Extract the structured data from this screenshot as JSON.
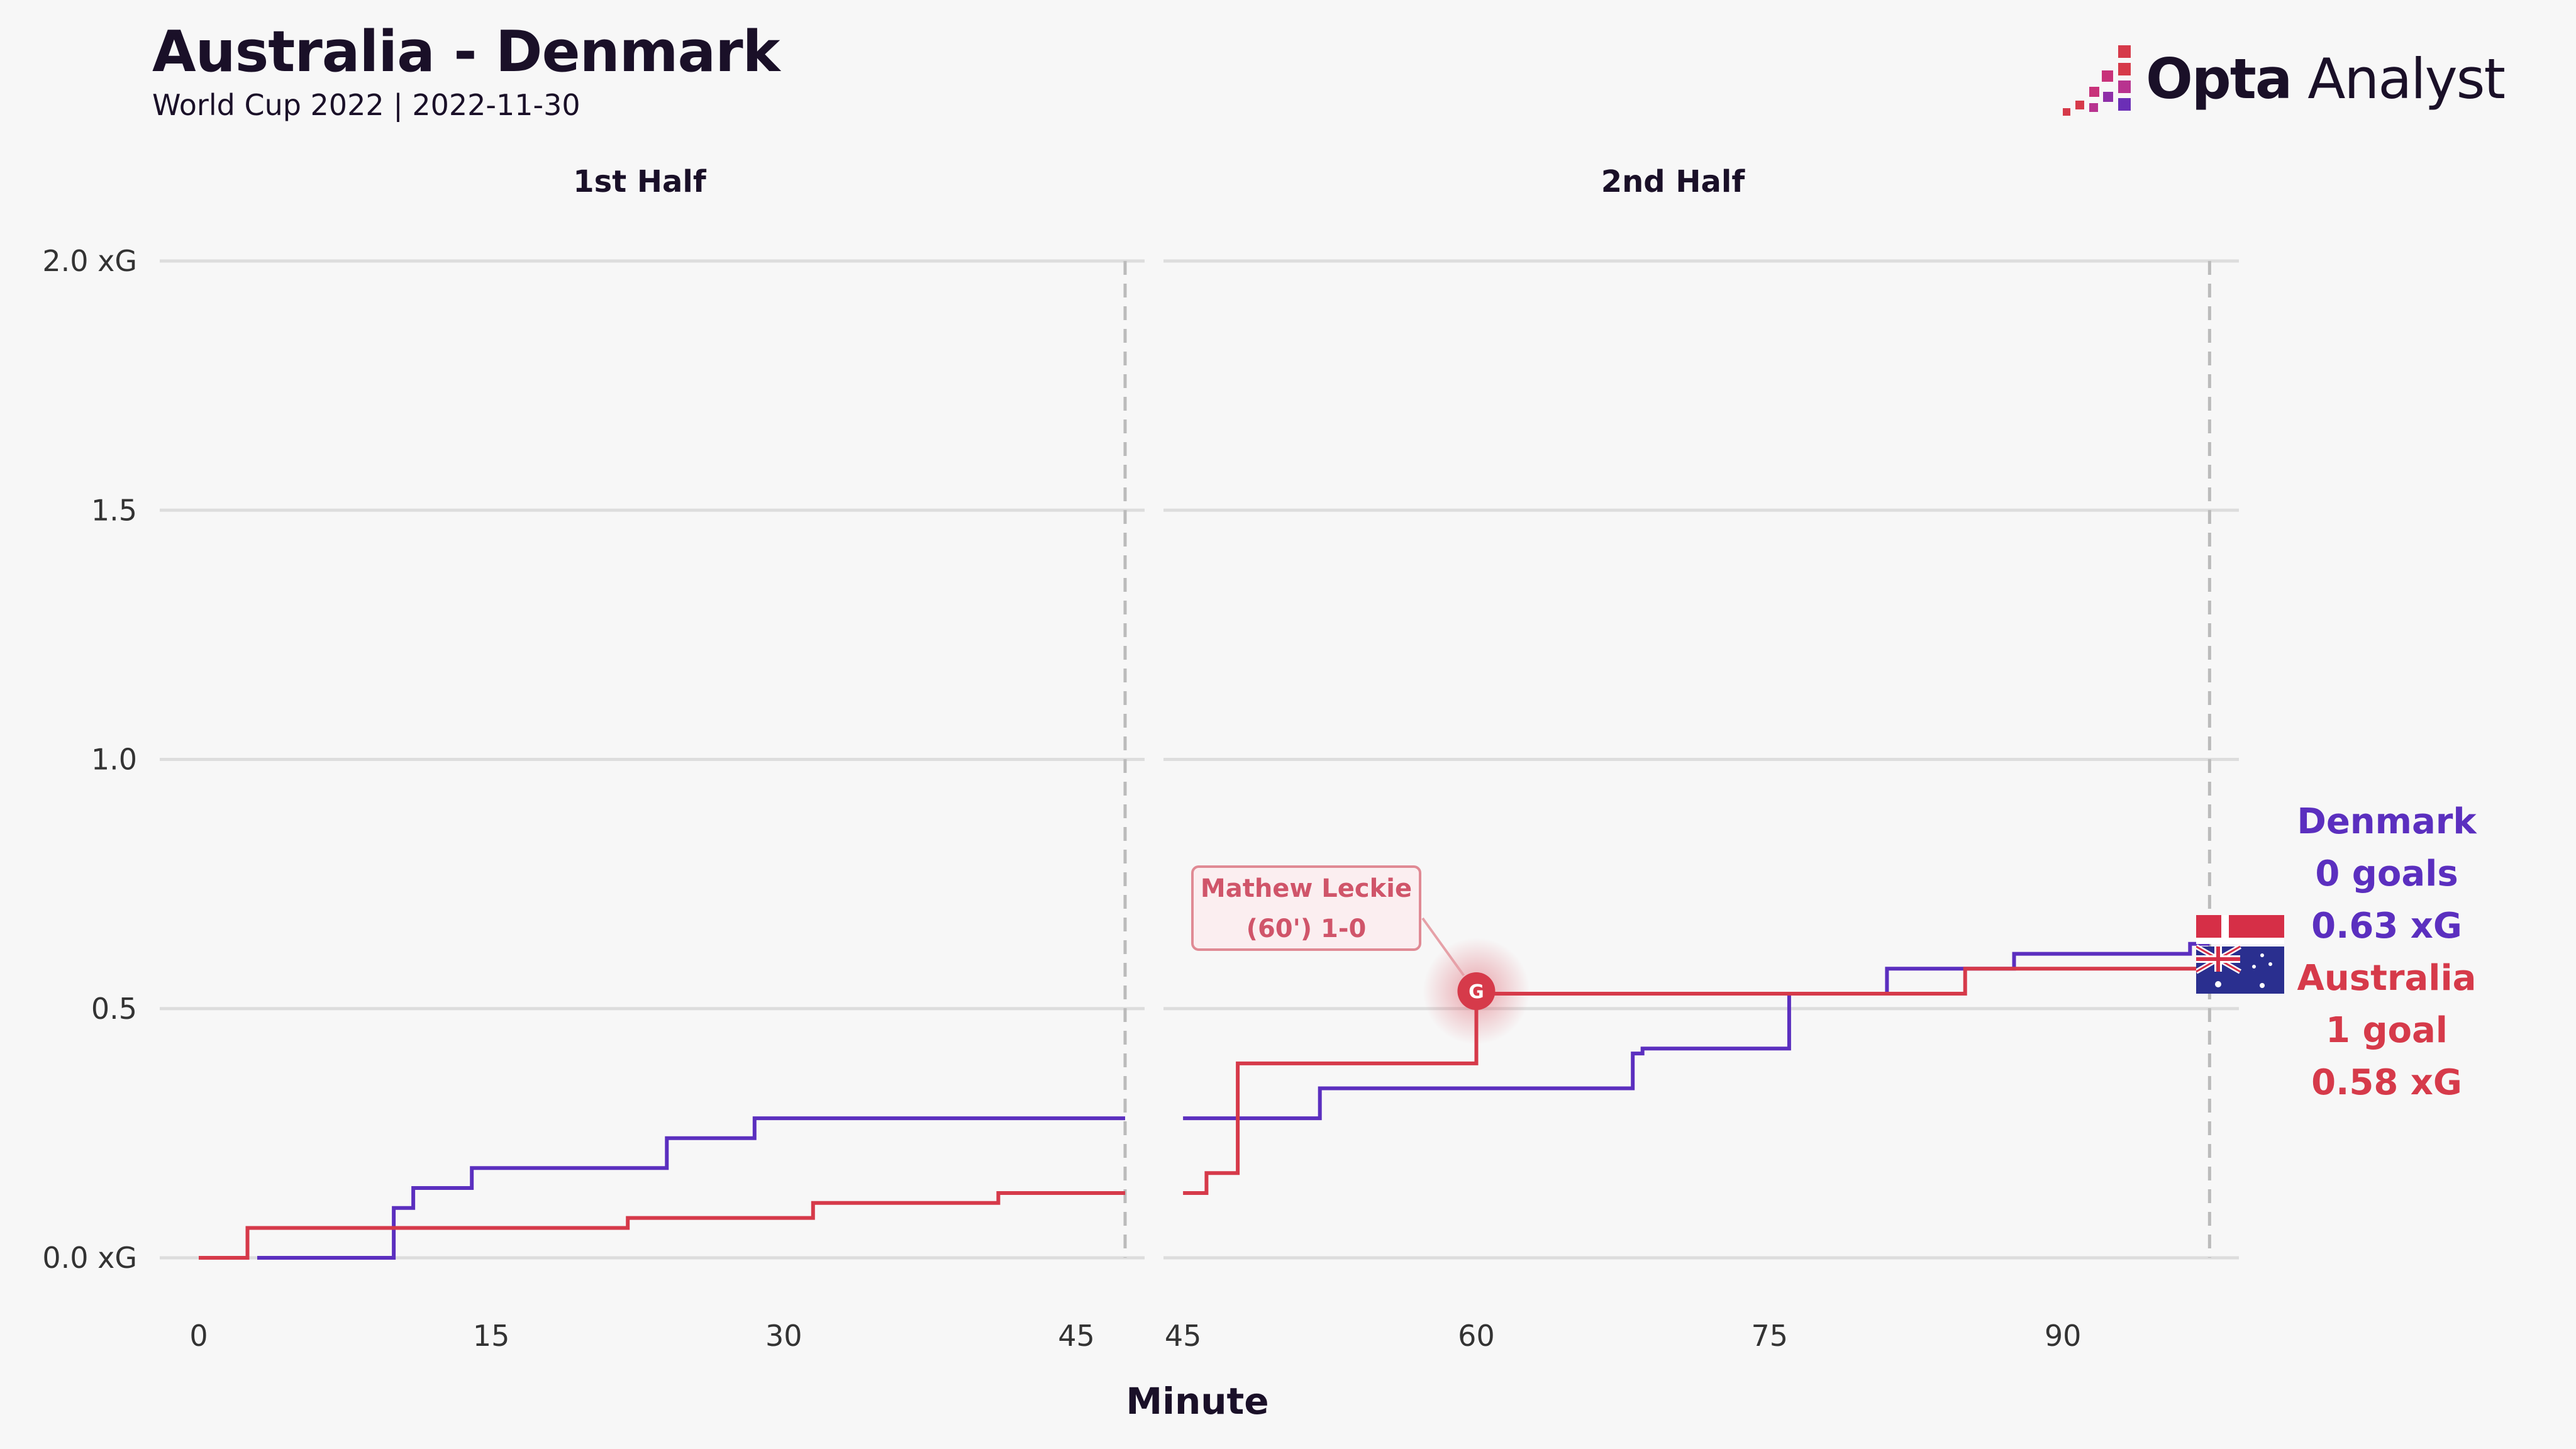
{
  "header": {
    "title": "Australia - Denmark",
    "subtitle": "World Cup 2022 | 2022-11-30",
    "logo_bold": "Opta",
    "logo_light": " Analyst"
  },
  "colors": {
    "denmark": "#5b2fbf",
    "australia": "#d63a4a",
    "grid": "#dddddd",
    "text": "#1a1028",
    "background": "#f7f7f7"
  },
  "chart_data": {
    "type": "line",
    "step": true,
    "xlabel": "Minute",
    "panels": [
      {
        "title": "1st Half",
        "xlim": [
          0,
          47.5
        ],
        "x_ticks": [
          0,
          15,
          30,
          45
        ],
        "end_marker": 47.5
      },
      {
        "title": "2nd Half",
        "xlim": [
          45,
          97.5
        ],
        "x_ticks": [
          45,
          60,
          75,
          90
        ],
        "end_marker": 97.5
      }
    ],
    "ylim": [
      0,
      2.0
    ],
    "y_ticks": [
      0,
      0.5,
      1.0,
      1.5,
      2.0
    ],
    "y_tick_labels": [
      "0.0 xG",
      "0.5",
      "1.0",
      "1.5",
      "2.0 xG"
    ],
    "grid": true,
    "series": [
      {
        "name": "Denmark",
        "color_key": "denmark",
        "first_half": [
          [
            3,
            0.0
          ],
          [
            10,
            0.0
          ],
          [
            10,
            0.1
          ],
          [
            11,
            0.1
          ],
          [
            11,
            0.14
          ],
          [
            14,
            0.14
          ],
          [
            14,
            0.18
          ],
          [
            24,
            0.18
          ],
          [
            24,
            0.24
          ],
          [
            28.5,
            0.24
          ],
          [
            28.5,
            0.28
          ],
          [
            47.5,
            0.28
          ]
        ],
        "second_half": [
          [
            45,
            0.28
          ],
          [
            52,
            0.28
          ],
          [
            52,
            0.34
          ],
          [
            68,
            0.34
          ],
          [
            68,
            0.41
          ],
          [
            68.5,
            0.41
          ],
          [
            68.5,
            0.42
          ],
          [
            76,
            0.42
          ],
          [
            76,
            0.53
          ],
          [
            81,
            0.53
          ],
          [
            81,
            0.58
          ],
          [
            87.5,
            0.58
          ],
          [
            87.5,
            0.61
          ],
          [
            96.5,
            0.61
          ],
          [
            96.5,
            0.63
          ],
          [
            97.5,
            0.63
          ]
        ]
      },
      {
        "name": "Australia",
        "color_key": "australia",
        "first_half": [
          [
            0,
            0.0
          ],
          [
            2.5,
            0.0
          ],
          [
            2.5,
            0.06
          ],
          [
            22,
            0.06
          ],
          [
            22,
            0.08
          ],
          [
            31.5,
            0.08
          ],
          [
            31.5,
            0.11
          ],
          [
            41,
            0.11
          ],
          [
            41,
            0.13
          ],
          [
            47.5,
            0.13
          ]
        ],
        "second_half": [
          [
            45,
            0.13
          ],
          [
            46.2,
            0.13
          ],
          [
            46.2,
            0.17
          ],
          [
            47.8,
            0.17
          ],
          [
            47.8,
            0.39
          ],
          [
            60,
            0.39
          ],
          [
            60,
            0.53
          ],
          [
            85,
            0.53
          ],
          [
            85,
            0.58
          ],
          [
            97.5,
            0.58
          ]
        ]
      }
    ],
    "annotations": [
      {
        "series": "Australia",
        "minute": 60,
        "value": 0.535,
        "marker": "G",
        "line1": "Mathew Leckie",
        "line2": "(60') 1-0"
      }
    ],
    "legend": {
      "denmark": {
        "team": "Denmark",
        "goals": "0 goals",
        "xg": "0.63 xG"
      },
      "australia": {
        "team": "Australia",
        "goals": "1 goal",
        "xg": "0.58 xG"
      }
    }
  }
}
